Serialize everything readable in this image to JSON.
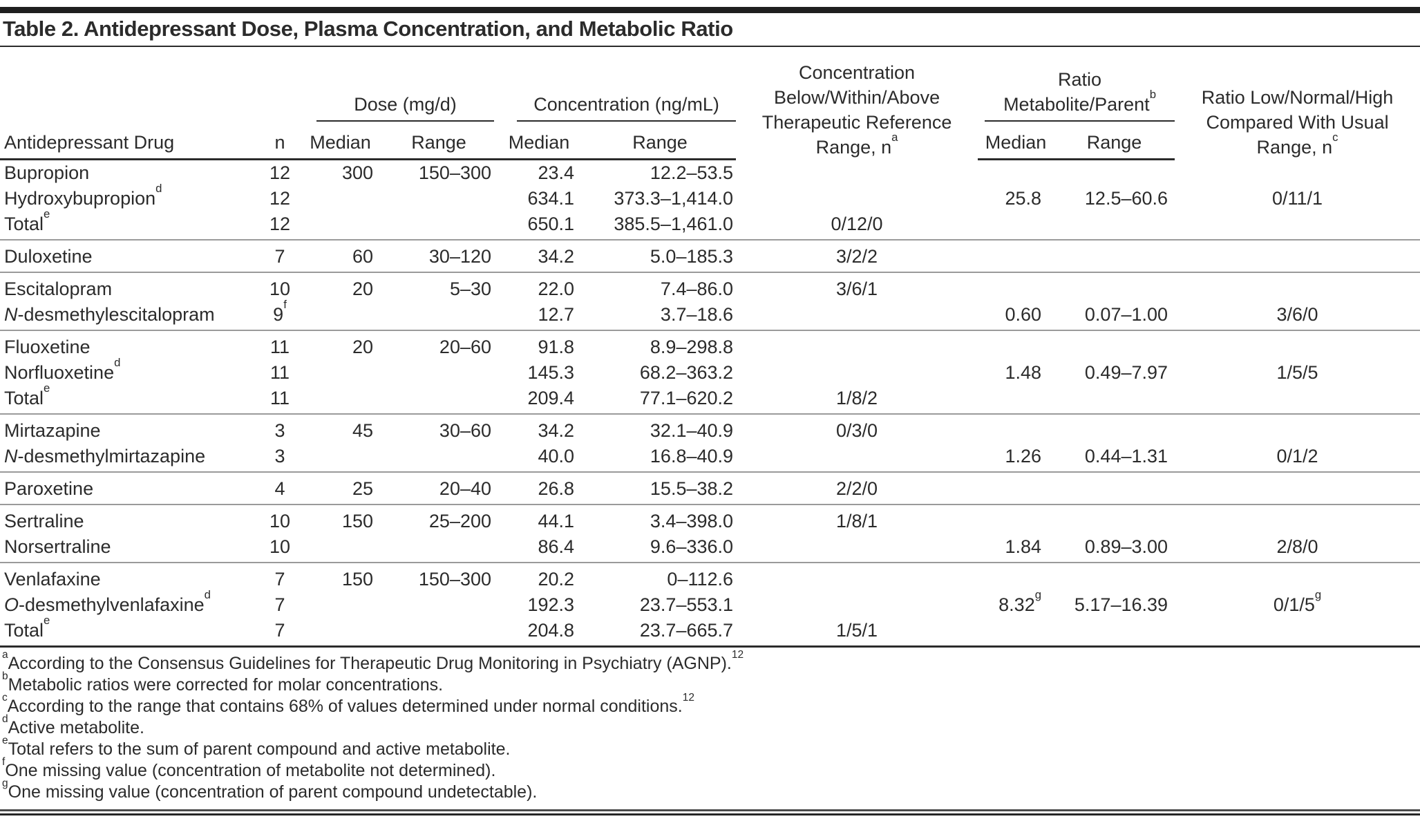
{
  "title": "Table 2. Antidepressant Dose, Plasma Concentration, and Metabolic Ratio",
  "colors": {
    "text": "#2b2b2b",
    "rule_dark": "#2b2b2b",
    "rule_light": "#9a9a9a",
    "top_bar": "#1f1f1f"
  },
  "headers": {
    "drug": "Antidepressant Drug",
    "n": "n",
    "median": "Median",
    "range": "Range",
    "dose_group": "Dose (mg/d)",
    "conc_group": "Concentration (ng/mL)",
    "bwa_lines": [
      "Concentration",
      "Below/Within/Above",
      "Therapeutic Reference",
      "Range, n"
    ],
    "bwa_sup": "a",
    "ratio_lines": [
      "Ratio",
      "Metabolite/Parent"
    ],
    "ratio_sup": "b",
    "lnh_lines": [
      "Ratio Low/Normal/High",
      "Compared With Usual",
      "Range, n"
    ],
    "lnh_sup": "c"
  },
  "groups": [
    {
      "rows": [
        {
          "drug": "Bupropion",
          "n": "12",
          "dose_median": "300",
          "dose_range": "150–300",
          "conc_median": "23.4",
          "conc_range": "12.2–53.5"
        },
        {
          "drug": "Hydroxybupropion",
          "drug_sup": "d",
          "n": "12",
          "conc_median": "634.1",
          "conc_range": "373.3–1,414.0",
          "ratio_median": "25.8",
          "ratio_range": "12.5–60.6",
          "lnh": "0/11/1"
        },
        {
          "drug": "Total",
          "drug_sup": "e",
          "n": "12",
          "conc_median": "650.1",
          "conc_range": "385.5–1,461.0",
          "bwa": "0/12/0"
        }
      ]
    },
    {
      "rows": [
        {
          "drug": "Duloxetine",
          "n": "7",
          "dose_median": "60",
          "dose_range": "30–120",
          "conc_median": "34.2",
          "conc_range": "5.0–185.3",
          "bwa": "3/2/2"
        }
      ]
    },
    {
      "rows": [
        {
          "drug": "Escitalopram",
          "n": "10",
          "dose_median": "20",
          "dose_range": "5–30",
          "conc_median": "22.0",
          "conc_range": "7.4–86.0",
          "bwa": "3/6/1"
        },
        {
          "drug_italic": "N",
          "drug": "-desmethylescitalopram",
          "n": "9",
          "n_sup": "f",
          "conc_median": "12.7",
          "conc_range": "3.7–18.6",
          "ratio_median": "0.60",
          "ratio_range": "0.07–1.00",
          "lnh": "3/6/0"
        }
      ]
    },
    {
      "rows": [
        {
          "drug": "Fluoxetine",
          "n": "11",
          "dose_median": "20",
          "dose_range": "20–60",
          "conc_median": "91.8",
          "conc_range": "8.9–298.8"
        },
        {
          "drug": "Norfluoxetine",
          "drug_sup": "d",
          "n": "11",
          "conc_median": "145.3",
          "conc_range": "68.2–363.2",
          "ratio_median": "1.48",
          "ratio_range": "0.49–7.97",
          "lnh": "1/5/5"
        },
        {
          "drug": "Total",
          "drug_sup": "e",
          "n": "11",
          "conc_median": "209.4",
          "conc_range": "77.1–620.2",
          "bwa": "1/8/2"
        }
      ]
    },
    {
      "rows": [
        {
          "drug": "Mirtazapine",
          "n": "3",
          "dose_median": "45",
          "dose_range": "30–60",
          "conc_median": "34.2",
          "conc_range": "32.1–40.9",
          "bwa": "0/3/0"
        },
        {
          "drug_italic": "N",
          "drug": "-desmethylmirtazapine",
          "n": "3",
          "conc_median": "40.0",
          "conc_range": "16.8–40.9",
          "ratio_median": "1.26",
          "ratio_range": "0.44–1.31",
          "lnh": "0/1/2"
        }
      ]
    },
    {
      "rows": [
        {
          "drug": "Paroxetine",
          "n": "4",
          "dose_median": "25",
          "dose_range": "20–40",
          "conc_median": "26.8",
          "conc_range": "15.5–38.2",
          "bwa": "2/2/0"
        }
      ]
    },
    {
      "rows": [
        {
          "drug": "Sertraline",
          "n": "10",
          "dose_median": "150",
          "dose_range": "25–200",
          "conc_median": "44.1",
          "conc_range": "3.4–398.0",
          "bwa": "1/8/1"
        },
        {
          "drug": "Norsertraline",
          "n": "10",
          "conc_median": "86.4",
          "conc_range": "9.6–336.0",
          "ratio_median": "1.84",
          "ratio_range": "0.89–3.00",
          "lnh": "2/8/0"
        }
      ]
    },
    {
      "rows": [
        {
          "drug": "Venlafaxine",
          "n": "7",
          "dose_median": "150",
          "dose_range": "150–300",
          "conc_median": "20.2",
          "conc_range": "0–112.6"
        },
        {
          "drug_italic": "O",
          "drug": "-desmethylvenlafaxine",
          "drug_sup": "d",
          "n": "7",
          "conc_median": "192.3",
          "conc_range": "23.7–553.1",
          "ratio_median": "8.32",
          "ratio_median_sup": "g",
          "ratio_range": "5.17–16.39",
          "lnh": "0/1/5",
          "lnh_sup": "g"
        },
        {
          "drug": "Total",
          "drug_sup": "e",
          "n": "7",
          "conc_median": "204.8",
          "conc_range": "23.7–665.7",
          "bwa": "1/5/1"
        }
      ]
    }
  ],
  "footnotes": [
    {
      "mark": "a",
      "text": "According to the Consensus Guidelines for Therapeutic Drug Monitoring in Psychiatry (AGNP).",
      "ref": "12"
    },
    {
      "mark": "b",
      "text": "Metabolic ratios were corrected for molar concentrations."
    },
    {
      "mark": "c",
      "text": "According to the range that contains 68% of values determined under normal conditions.",
      "ref": "12"
    },
    {
      "mark": "d",
      "text": "Active metabolite."
    },
    {
      "mark": "e",
      "text": "Total refers to the sum of parent compound and active metabolite."
    },
    {
      "mark": "f",
      "text": "One missing value (concentration of metabolite not determined)."
    },
    {
      "mark": "g",
      "text": "One missing value (concentration of parent compound undetectable)."
    }
  ]
}
